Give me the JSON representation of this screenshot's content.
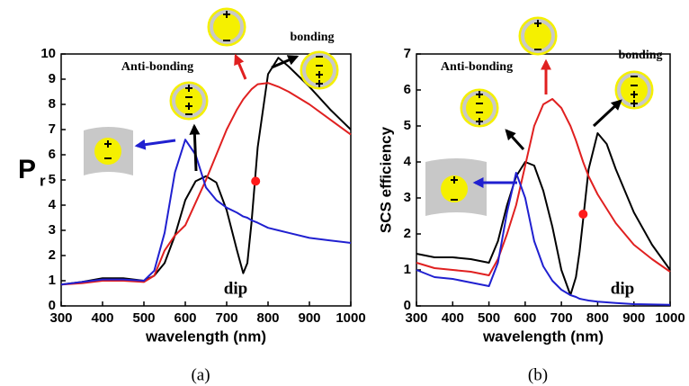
{
  "chart_data": [
    {
      "type": "line",
      "xlabel": "wavelength (nm)",
      "ylabel": "P",
      "ylabel_sub": "r",
      "caption": "(a)",
      "annotations": [
        "Anti-bonding",
        "bonding",
        "dip"
      ],
      "x": [
        300,
        350,
        400,
        450,
        500,
        525,
        550,
        575,
        600,
        625,
        650,
        675,
        700,
        725,
        740,
        750,
        760,
        775,
        800,
        825,
        850,
        900,
        950,
        1000
      ],
      "series": [
        {
          "color": "#000000",
          "values": [
            0.85,
            0.95,
            1.1,
            1.1,
            1.0,
            1.2,
            1.7,
            2.8,
            4.2,
            4.95,
            5.15,
            4.9,
            3.8,
            2.2,
            1.3,
            1.7,
            3.3,
            6.3,
            9.2,
            9.85,
            9.5,
            8.7,
            7.8,
            7.0
          ]
        },
        {
          "color": "#e02020",
          "values": [
            0.85,
            0.9,
            1.0,
            1.0,
            0.95,
            1.2,
            2.2,
            2.8,
            3.2,
            4.1,
            5.0,
            6.0,
            7.0,
            7.8,
            8.2,
            8.4,
            8.6,
            8.8,
            8.85,
            8.7,
            8.5,
            8.0,
            7.4,
            6.8
          ]
        },
        {
          "color": "#2020d0",
          "values": [
            0.85,
            0.95,
            1.05,
            1.05,
            1.0,
            1.4,
            2.9,
            5.3,
            6.6,
            6.0,
            4.7,
            4.2,
            3.9,
            3.7,
            3.55,
            3.5,
            3.4,
            3.3,
            3.1,
            3.0,
            2.9,
            2.7,
            2.6,
            2.5
          ]
        }
      ],
      "marker": {
        "x": 770,
        "y": 4.95,
        "color": "#ff1a1a"
      },
      "xlim": [
        300,
        1000
      ],
      "xticks": [
        300,
        400,
        500,
        600,
        700,
        800,
        900,
        1000
      ],
      "ylim": [
        0,
        10
      ],
      "yticks": [
        0,
        1,
        2,
        3,
        4,
        5,
        6,
        7,
        8,
        9,
        10
      ]
    },
    {
      "type": "line",
      "xlabel": "wavelength (nm)",
      "ylabel": "SCS  efficiency",
      "caption": "(b)",
      "annotations": [
        "Anti-bonding",
        "bonding",
        "dip"
      ],
      "x": [
        300,
        350,
        400,
        450,
        500,
        525,
        550,
        575,
        600,
        625,
        650,
        675,
        700,
        725,
        740,
        750,
        760,
        775,
        800,
        825,
        850,
        900,
        950,
        1000
      ],
      "series": [
        {
          "color": "#000000",
          "values": [
            1.45,
            1.35,
            1.35,
            1.3,
            1.2,
            1.8,
            2.8,
            3.6,
            4.0,
            3.9,
            3.2,
            2.2,
            1.0,
            0.3,
            0.8,
            1.5,
            2.4,
            3.8,
            4.8,
            4.5,
            3.8,
            2.6,
            1.7,
            1.0
          ]
        },
        {
          "color": "#e02020",
          "values": [
            1.2,
            1.05,
            1.0,
            0.95,
            0.85,
            1.3,
            2.0,
            2.8,
            3.9,
            5.0,
            5.6,
            5.75,
            5.5,
            5.0,
            4.6,
            4.3,
            4.0,
            3.6,
            3.1,
            2.7,
            2.3,
            1.7,
            1.3,
            0.95
          ]
        },
        {
          "color": "#2020d0",
          "values": [
            1.0,
            0.8,
            0.75,
            0.65,
            0.55,
            1.2,
            2.6,
            3.7,
            3.0,
            1.8,
            1.1,
            0.7,
            0.45,
            0.3,
            0.25,
            0.2,
            0.18,
            0.15,
            0.12,
            0.1,
            0.08,
            0.05,
            0.04,
            0.03
          ]
        }
      ],
      "marker": {
        "x": 760,
        "y": 2.55,
        "color": "#ff1a1a"
      },
      "xlim": [
        300,
        1000
      ],
      "xticks": [
        300,
        400,
        500,
        600,
        700,
        800,
        900,
        1000
      ],
      "ylim": [
        0,
        7
      ],
      "yticks": [
        0,
        1,
        2,
        3,
        4,
        5,
        6,
        7
      ]
    }
  ]
}
